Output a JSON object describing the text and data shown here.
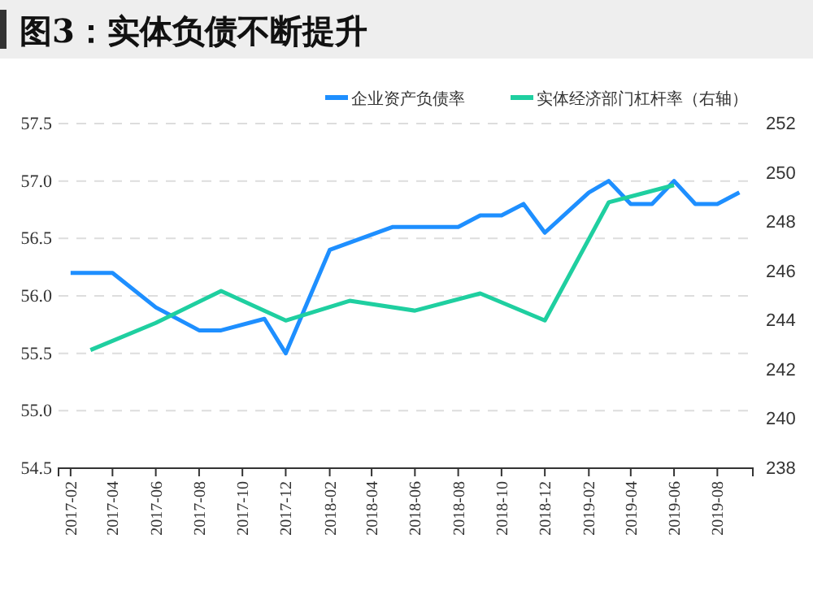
{
  "chart_data": {
    "type": "line",
    "title": "图3：实体负债不断提升",
    "series": [
      {
        "name": "企业资产负债率",
        "color": "#1e8fff",
        "x": [
          "2017-02",
          "2017-04",
          "2017-06",
          "2017-08",
          "2017-09",
          "2017-11",
          "2017-12",
          "2018-02",
          "2018-05",
          "2018-08",
          "2018-09",
          "2018-10",
          "2018-11",
          "2018-12",
          "2019-02",
          "2019-03",
          "2019-04",
          "2019-05",
          "2019-06",
          "2019-07",
          "2019-08",
          "2019-09"
        ],
        "values": [
          56.2,
          56.2,
          55.9,
          55.7,
          55.7,
          55.8,
          55.5,
          56.4,
          56.6,
          56.6,
          56.7,
          56.7,
          56.8,
          56.55,
          56.9,
          57.0,
          56.8,
          56.8,
          57.0,
          56.8,
          56.8,
          56.9
        ]
      },
      {
        "name": "实体经济部门杠杆率（右轴）",
        "color": "#1fcfa0",
        "axis": "y2",
        "x": [
          "2017-03",
          "2017-06",
          "2017-09",
          "2017-12",
          "2018-03",
          "2018-06",
          "2018-09",
          "2018-12",
          "2019-03",
          "2019-06"
        ],
        "values": [
          242.8,
          243.9,
          245.2,
          244.0,
          244.8,
          244.4,
          245.1,
          244.0,
          248.8,
          249.5
        ]
      }
    ],
    "xlim": [
      "2017-01-15",
      "2019-09-20"
    ],
    "xticks": [
      {
        "value": "2017-02",
        "label": "2017-02"
      },
      {
        "value": "2017-04",
        "label": "2017-04"
      },
      {
        "value": "2017-06",
        "label": "2017-06"
      },
      {
        "value": "2017-08",
        "label": "2017-08"
      },
      {
        "value": "2017-10",
        "label": "2017-10"
      },
      {
        "value": "2017-12",
        "label": "2017-12"
      },
      {
        "value": "2018-02",
        "label": "2018-02"
      },
      {
        "value": "2018-04",
        "label": "2018-04"
      },
      {
        "value": "2018-06",
        "label": "2018-06"
      },
      {
        "value": "2018-08",
        "label": "2018-08"
      },
      {
        "value": "2018-10",
        "label": "2018-10"
      },
      {
        "value": "2018-12",
        "label": "2018-12"
      },
      {
        "value": "2019-02",
        "label": "2019-02"
      },
      {
        "value": "2019-04",
        "label": "2019-04"
      },
      {
        "value": "2019-06",
        "label": "2019-06"
      },
      {
        "value": "2019-08",
        "label": "2019-08"
      }
    ],
    "ylim": [
      54.5,
      57.5
    ],
    "yticks": [
      54.5,
      {
        "value": 55,
        "label": "55.0"
      },
      55.5,
      {
        "value": 56,
        "label": "56.0"
      },
      56.5,
      {
        "value": 57,
        "label": "57.0"
      },
      57.5
    ],
    "y2lim": [
      238,
      252
    ],
    "y2ticks": [
      238,
      240,
      242,
      244,
      246,
      248,
      250,
      252
    ],
    "grid": "y",
    "legend": "top right",
    "line_style": "solid",
    "marker": "none"
  }
}
